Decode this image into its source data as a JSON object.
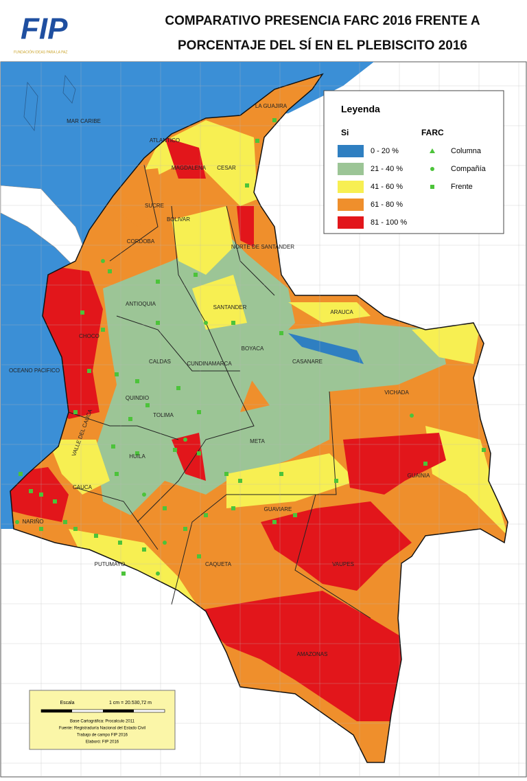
{
  "header": {
    "logo": "FIP",
    "logo_subtitle": "FUNDACIÓN IDEAS PARA LA PAZ",
    "title_lines": [
      "COMPARATIVO PRESENCIA FARC 2016 FRENTE A",
      "PORCENTAJE DEL SÍ EN EL PLEBISCITO 2016"
    ]
  },
  "legend": {
    "title": "Leyenda",
    "si_heading": "Si",
    "farc_heading": "FARC",
    "si_classes": [
      {
        "label": "0 - 20 %",
        "color": "#2f7fc1"
      },
      {
        "label": "21 - 40 %",
        "color": "#9cc596"
      },
      {
        "label": "41 - 60 %",
        "color": "#f7ef52"
      },
      {
        "label": "61 - 80 %",
        "color": "#ef8f2c"
      },
      {
        "label": "81 - 100 %",
        "color": "#e2161b"
      }
    ],
    "farc_items": [
      "Columna",
      "Compañía",
      "Frente"
    ],
    "farc_color": "#4cc33a"
  },
  "map_labels": [
    "MAR CARIBE",
    "OCEANO PACIFICO",
    "LA GUAJIRA",
    "ATLANTICO",
    "CESAR",
    "MAGDALENA",
    "BOLIVAR",
    "CORDOBA",
    "SUCRE",
    "NORTE DE SANTANDER",
    "ANTIOQUIA",
    "SANTANDER",
    "ARAUCA",
    "CHOCO",
    "BOYACA",
    "CASANARE",
    "CALDAS",
    "CUNDINAMARCA",
    "VICHADA",
    "QUINDIO",
    "TOLIMA",
    "VALLE DEL CAUCA",
    "META",
    "GUAINIA",
    "HUILA",
    "CAUCA",
    "GUAVIARE",
    "NARIÑO",
    "PUTUMAYO",
    "CAQUETA",
    "VAUPES",
    "AMAZONAS"
  ],
  "scale_box": {
    "heading": "Escala",
    "ratio": "1 cm = 20.530,72 m",
    "notes": [
      "Base Cartográfica: Procalculo 2011",
      "Fuente: Registraduría Nacional del Estado Civil",
      "Trabajo de campo FIP 2016",
      "Elaboró: FIP 2016"
    ]
  }
}
